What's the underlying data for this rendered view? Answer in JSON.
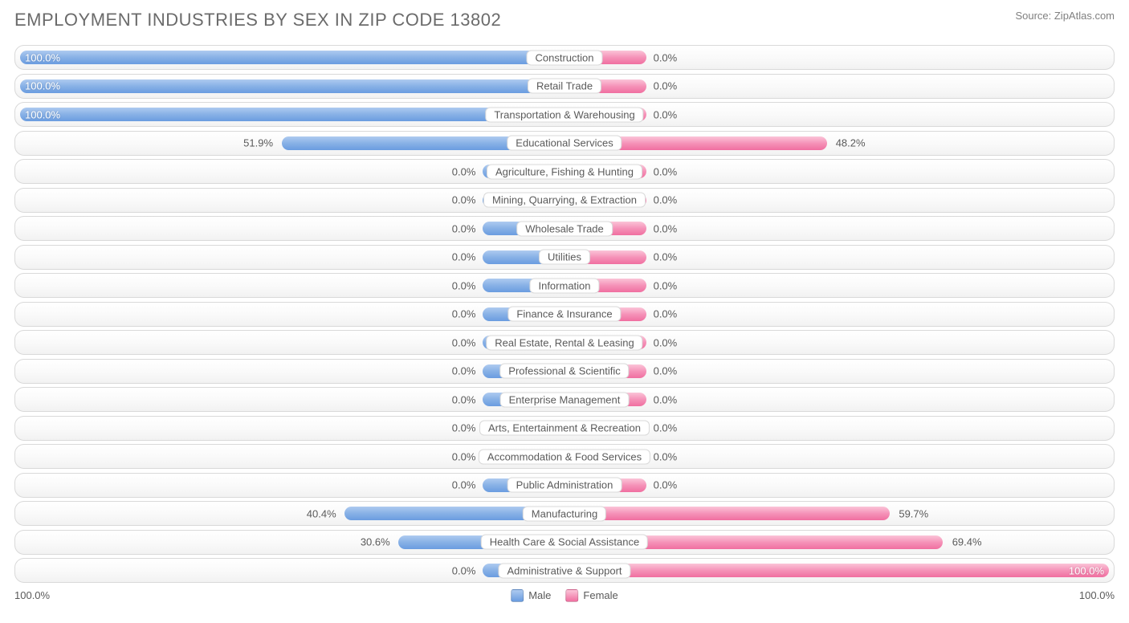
{
  "title": "EMPLOYMENT INDUSTRIES BY SEX IN ZIP CODE 13802",
  "source": "Source: ZipAtlas.com",
  "chart": {
    "type": "diverging-bar",
    "male_color_top": "#aecaf0",
    "male_color_bottom": "#6a9ce0",
    "female_color_top": "#fbc4d8",
    "female_color_bottom": "#f06fa0",
    "row_border_color": "#d9d9d9",
    "row_bg_top": "#ffffff",
    "row_bg_bottom": "#f2f2f2",
    "text_color": "#5a5a5a",
    "axis_left": "100.0%",
    "axis_right": "100.0%",
    "half_min_bar_pct": 15,
    "rows": [
      {
        "label": "Construction",
        "male": 100.0,
        "female": 0.0,
        "male_text": "100.0%",
        "female_text": "0.0%",
        "female_min": true
      },
      {
        "label": "Retail Trade",
        "male": 100.0,
        "female": 0.0,
        "male_text": "100.0%",
        "female_text": "0.0%",
        "female_min": true
      },
      {
        "label": "Transportation & Warehousing",
        "male": 100.0,
        "female": 0.0,
        "male_text": "100.0%",
        "female_text": "0.0%",
        "female_min": true
      },
      {
        "label": "Educational Services",
        "male": 51.9,
        "female": 48.2,
        "male_text": "51.9%",
        "female_text": "48.2%"
      },
      {
        "label": "Agriculture, Fishing & Hunting",
        "male": 0.0,
        "female": 0.0,
        "male_text": "0.0%",
        "female_text": "0.0%",
        "male_min": true,
        "female_min": true
      },
      {
        "label": "Mining, Quarrying, & Extraction",
        "male": 0.0,
        "female": 0.0,
        "male_text": "0.0%",
        "female_text": "0.0%",
        "male_min": true,
        "female_min": true
      },
      {
        "label": "Wholesale Trade",
        "male": 0.0,
        "female": 0.0,
        "male_text": "0.0%",
        "female_text": "0.0%",
        "male_min": true,
        "female_min": true
      },
      {
        "label": "Utilities",
        "male": 0.0,
        "female": 0.0,
        "male_text": "0.0%",
        "female_text": "0.0%",
        "male_min": true,
        "female_min": true
      },
      {
        "label": "Information",
        "male": 0.0,
        "female": 0.0,
        "male_text": "0.0%",
        "female_text": "0.0%",
        "male_min": true,
        "female_min": true
      },
      {
        "label": "Finance & Insurance",
        "male": 0.0,
        "female": 0.0,
        "male_text": "0.0%",
        "female_text": "0.0%",
        "male_min": true,
        "female_min": true
      },
      {
        "label": "Real Estate, Rental & Leasing",
        "male": 0.0,
        "female": 0.0,
        "male_text": "0.0%",
        "female_text": "0.0%",
        "male_min": true,
        "female_min": true
      },
      {
        "label": "Professional & Scientific",
        "male": 0.0,
        "female": 0.0,
        "male_text": "0.0%",
        "female_text": "0.0%",
        "male_min": true,
        "female_min": true
      },
      {
        "label": "Enterprise Management",
        "male": 0.0,
        "female": 0.0,
        "male_text": "0.0%",
        "female_text": "0.0%",
        "male_min": true,
        "female_min": true
      },
      {
        "label": "Arts, Entertainment & Recreation",
        "male": 0.0,
        "female": 0.0,
        "male_text": "0.0%",
        "female_text": "0.0%",
        "male_min": true,
        "female_min": true
      },
      {
        "label": "Accommodation & Food Services",
        "male": 0.0,
        "female": 0.0,
        "male_text": "0.0%",
        "female_text": "0.0%",
        "male_min": true,
        "female_min": true
      },
      {
        "label": "Public Administration",
        "male": 0.0,
        "female": 0.0,
        "male_text": "0.0%",
        "female_text": "0.0%",
        "male_min": true,
        "female_min": true
      },
      {
        "label": "Manufacturing",
        "male": 40.4,
        "female": 59.7,
        "male_text": "40.4%",
        "female_text": "59.7%"
      },
      {
        "label": "Health Care & Social Assistance",
        "male": 30.6,
        "female": 69.4,
        "male_text": "30.6%",
        "female_text": "69.4%"
      },
      {
        "label": "Administrative & Support",
        "male": 0.0,
        "female": 100.0,
        "male_text": "0.0%",
        "female_text": "100.0%",
        "male_min": true
      }
    ],
    "legend": {
      "male": "Male",
      "female": "Female"
    }
  }
}
